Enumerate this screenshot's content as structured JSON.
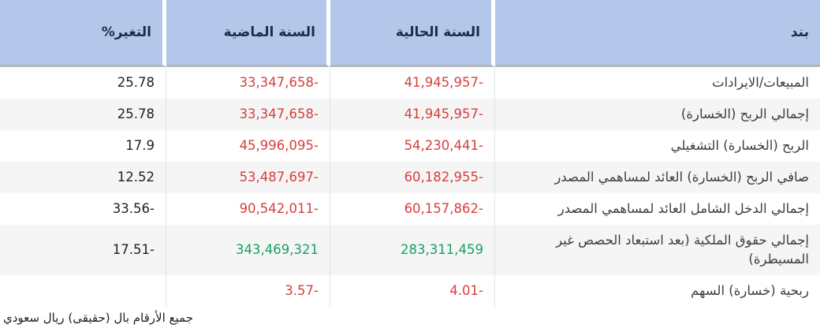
{
  "colors": {
    "header_bg": "#b4c7ea",
    "header_text": "#1e2a47",
    "row_alt": "#f5f5f6",
    "divider": "#e1e3e6",
    "negative": "#d6403c",
    "positive": "#16a163",
    "neutral": "#202124"
  },
  "table": {
    "columns": {
      "item": "بند",
      "current_year": "السنة الحالية",
      "last_year": "السنة الماضية",
      "change_pct": "التغير%"
    },
    "rows": [
      {
        "item": "المبيعات/الايرادات",
        "current_year": "41,945,957-",
        "last_year": "33,347,658-",
        "change_pct": "25.78",
        "trend": "negative"
      },
      {
        "item": "إجمالي الربح (الخسارة)",
        "current_year": "41,945,957-",
        "last_year": "33,347,658-",
        "change_pct": "25.78",
        "trend": "negative"
      },
      {
        "item": "الربح (الخسارة) التشغيلي",
        "current_year": "54,230,441-",
        "last_year": "45,996,095-",
        "change_pct": "17.9",
        "trend": "negative"
      },
      {
        "item": "صافي الربح (الخسارة) العائد لمساهمي المصدر",
        "current_year": "60,182,955-",
        "last_year": "53,487,697-",
        "change_pct": "12.52",
        "trend": "negative"
      },
      {
        "item": "إجمالي الدخل الشامل العائد لمساهمي المصدر",
        "current_year": "60,157,862-",
        "last_year": "90,542,011-",
        "change_pct": "33.56-",
        "trend": "negative"
      },
      {
        "item": "إجمالي حقوق الملكية (بعد استبعاد الحصص غير المسيطرة)",
        "current_year": "283,311,459",
        "last_year": "343,469,321",
        "change_pct": "17.51-",
        "trend": "positive"
      },
      {
        "item": "ربحية (خسارة) السهم",
        "current_year": "4.01-",
        "last_year": "3.57-",
        "change_pct": "",
        "trend": "negative"
      }
    ]
  },
  "footer": {
    "note": "جميع الأرقام بال (حقيقى) ريال سعودي"
  }
}
